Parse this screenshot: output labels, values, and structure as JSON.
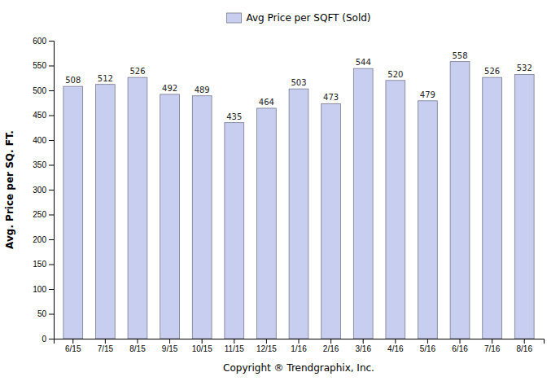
{
  "chart_data": {
    "type": "bar",
    "xlabel": "Copyright ® Trendgraphix, Inc.",
    "ylabel": "Avg. Price per SQ. FT.",
    "categories": [
      "6/15",
      "7/15",
      "8/15",
      "9/15",
      "10/15",
      "11/15",
      "12/15",
      "1/16",
      "2/16",
      "3/16",
      "4/16",
      "5/16",
      "6/16",
      "7/16",
      "8/16"
    ],
    "series": [
      {
        "name": "Avg Price per SQFT (Sold)",
        "color": "#c8cef0",
        "values": [
          508,
          512,
          526,
          492,
          489,
          435,
          464,
          503,
          473,
          544,
          520,
          479,
          558,
          526,
          532
        ]
      }
    ],
    "ylim": [
      0,
      600
    ],
    "yticks": [
      0,
      50,
      100,
      150,
      200,
      250,
      300,
      350,
      400,
      450,
      500,
      550,
      600
    ],
    "grid": false,
    "legend": "top",
    "data_labels": true
  }
}
